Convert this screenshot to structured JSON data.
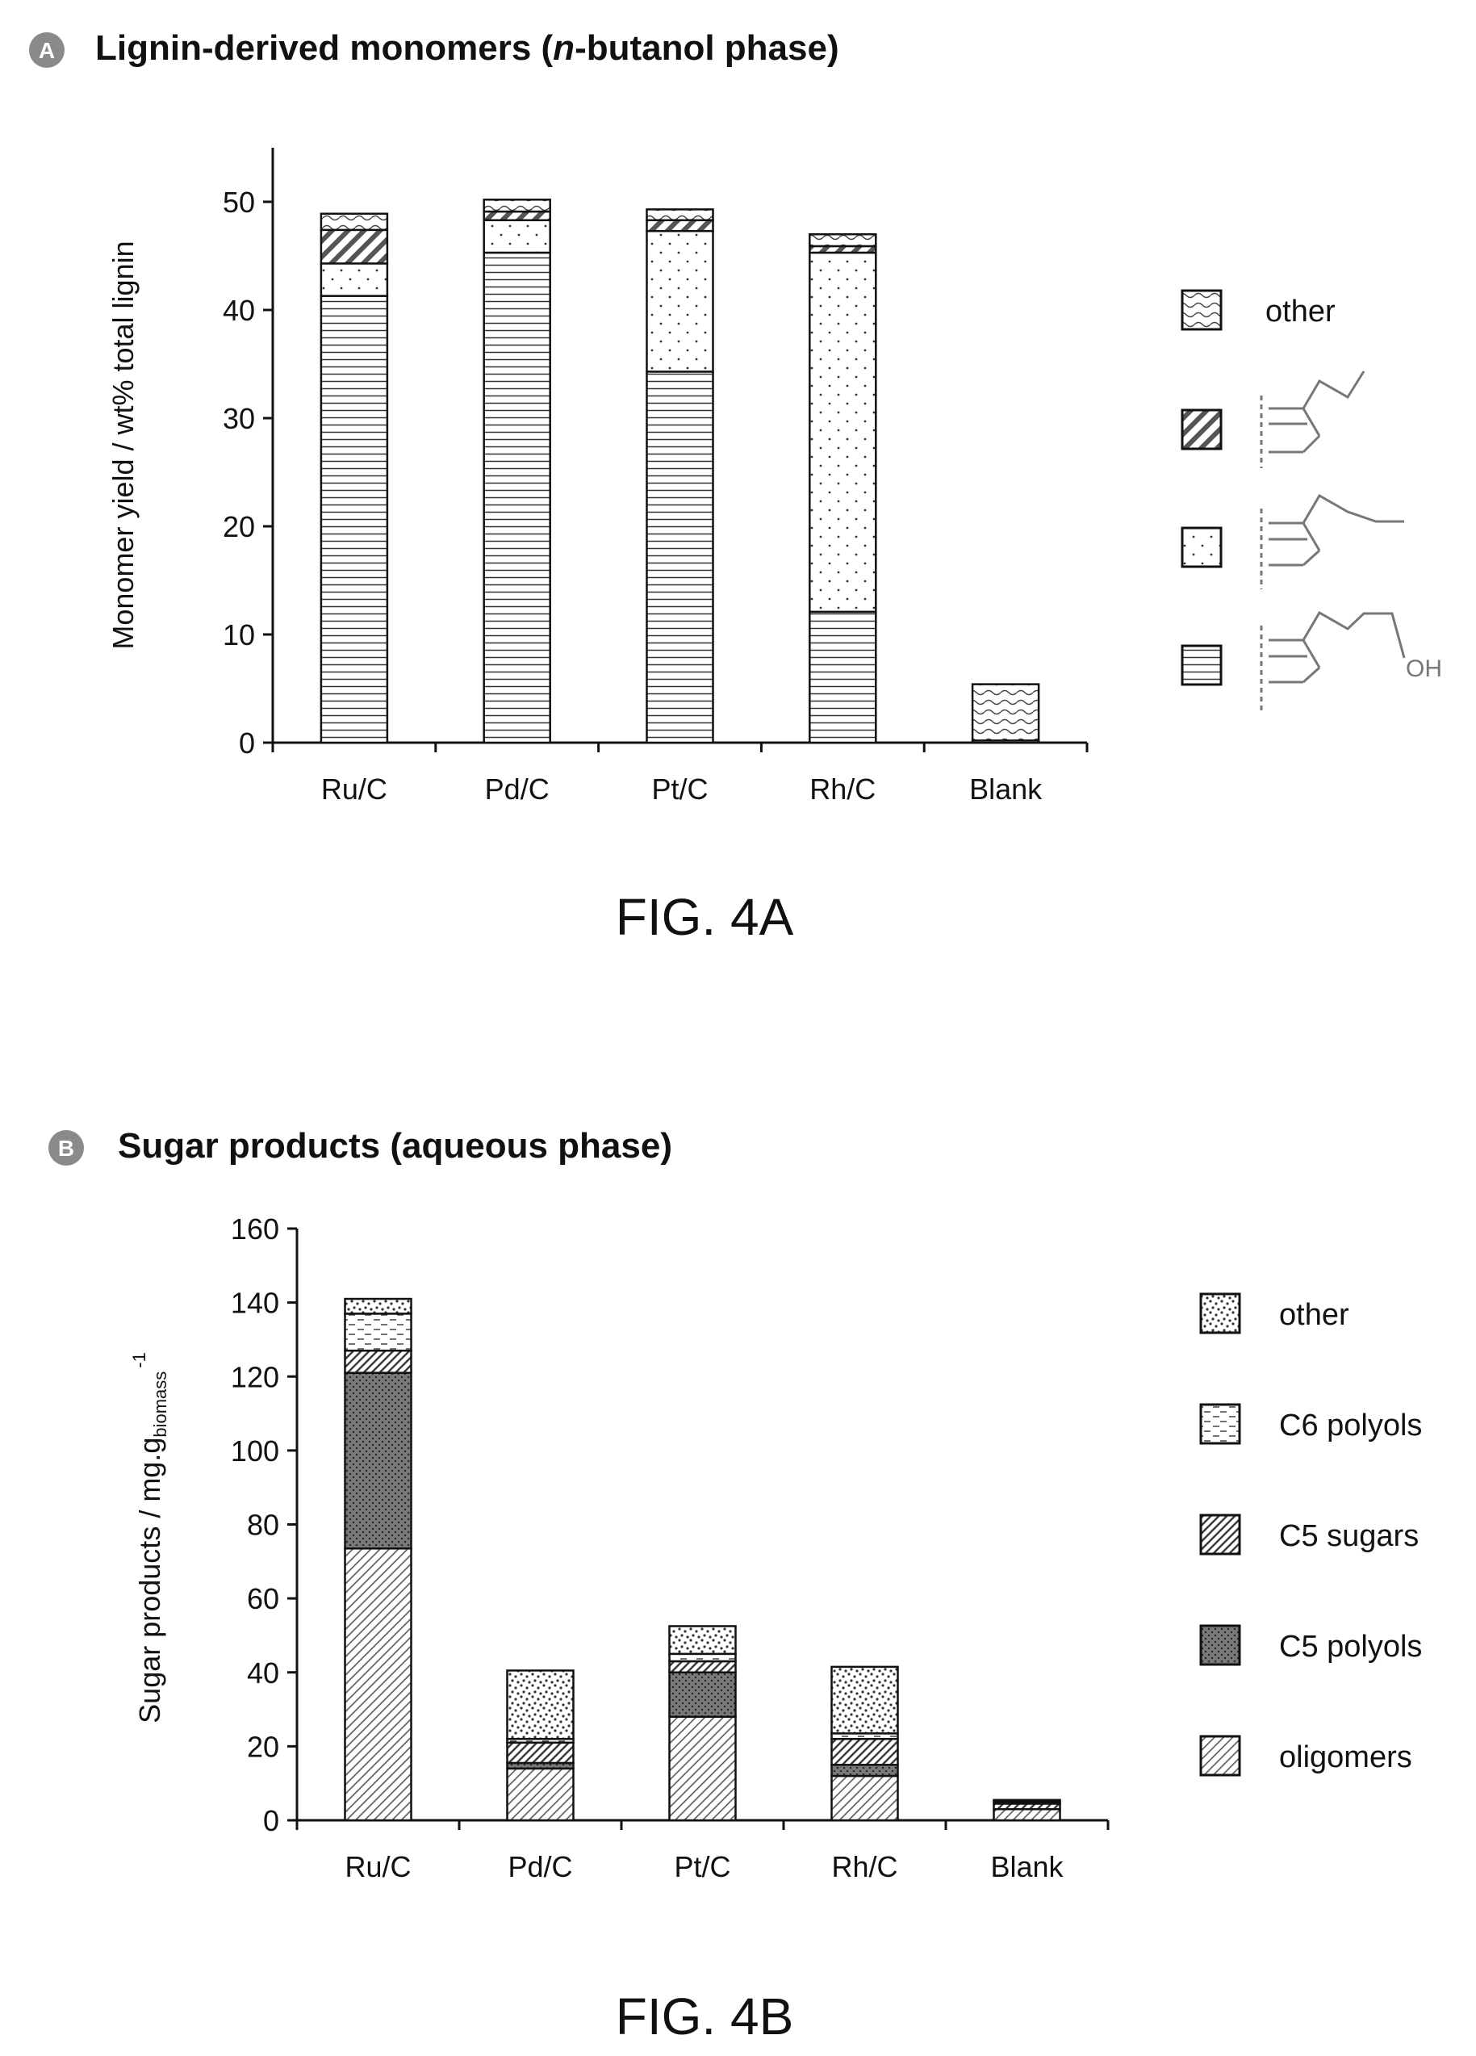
{
  "panel_a": {
    "badge": "A",
    "title_pre": "Lignin-derived monomers (",
    "title_ital": "n",
    "title_post": "-butanol phase)",
    "fig_label": "FIG. 4A",
    "oh_label": "OH"
  },
  "panel_b": {
    "badge": "B",
    "title": "Sugar products (aqueous phase)",
    "ylabel_main": "Sugar products / mg.g",
    "ylabel_sub": "biomass",
    "ylabel_sup": "-1",
    "fig_label": "FIG. 4B"
  },
  "chart_data": [
    {
      "type": "bar",
      "stacked": true,
      "title": "Lignin-derived monomers (n-butanol phase)",
      "xlabel": "",
      "ylabel": "Monomer yield / wt% total lignin",
      "ylim": [
        0,
        55
      ],
      "yticks": [
        0,
        10,
        20,
        30,
        40,
        50
      ],
      "grid": false,
      "legend_position": "right",
      "categories": [
        "Ru/C",
        "Pd/C",
        "Pt/C",
        "Rh/C",
        "Blank"
      ],
      "series": [
        {
          "legend": "propanol-substituted (OH) structure",
          "pattern": "hlines",
          "values": [
            41.3,
            45.3,
            34.3,
            12.1,
            0.2
          ]
        },
        {
          "legend": "propyl-substituted structure",
          "pattern": "dots",
          "values": [
            3.0,
            3.0,
            13.0,
            33.2,
            0
          ]
        },
        {
          "legend": "ethyl-substituted structure",
          "pattern": "diag",
          "values": [
            3.1,
            0.8,
            1.0,
            0.6,
            0
          ]
        },
        {
          "name": "other",
          "pattern": "wave",
          "values": [
            1.5,
            1.1,
            1.0,
            1.1,
            5.2
          ]
        }
      ]
    },
    {
      "type": "bar",
      "stacked": true,
      "title": "Sugar products (aqueous phase)",
      "xlabel": "",
      "ylabel": "Sugar products / mg.g biomass -1",
      "ylim": [
        0,
        160
      ],
      "yticks": [
        0,
        20,
        40,
        60,
        80,
        100,
        120,
        140,
        160
      ],
      "grid": false,
      "legend_position": "right",
      "categories": [
        "Ru/C",
        "Pd/C",
        "Pt/C",
        "Rh/C",
        "Blank"
      ],
      "series": [
        {
          "name": "oligomers",
          "pattern": "fine-diag",
          "values": [
            73.5,
            14.0,
            28.0,
            12.0,
            3.0
          ]
        },
        {
          "name": "C5 polyols",
          "pattern": "dark-dots",
          "values": [
            47.5,
            1.5,
            12.0,
            3.0,
            0
          ]
        },
        {
          "name": "C5 sugars",
          "pattern": "hatch",
          "values": [
            6.0,
            5.5,
            3.0,
            7.0,
            1.5
          ]
        },
        {
          "name": "C6 polyols",
          "pattern": "dashes",
          "values": [
            10.0,
            1.0,
            2.0,
            1.5,
            0.5
          ]
        },
        {
          "name": "other",
          "pattern": "speckle",
          "values": [
            4.0,
            18.5,
            7.5,
            18.0,
            0.5
          ]
        }
      ]
    }
  ]
}
